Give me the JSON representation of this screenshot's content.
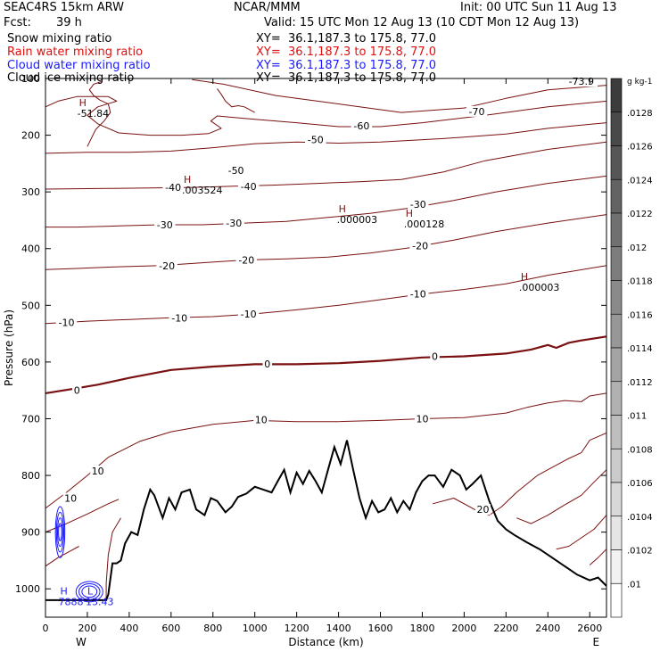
{
  "header": {
    "model": "SEAC4RS 15km ARW",
    "org": "NCAR/MMM",
    "init": "Init: 00 UTC Sun 11 Aug 13",
    "fcst_label": "Fcst:",
    "fcst_value": "39 h",
    "valid": "Valid: 15 UTC Mon 12 Aug 13 (10 CDT Mon 12 Aug 13)",
    "legend": [
      {
        "label": "Snow mixing ratio",
        "xy": "XY=  36.1,187.3 to 175.8, 77.0",
        "color": "#000000"
      },
      {
        "label": "Rain water mixing ratio",
        "xy": "XY=  36.1,187.3 to 175.8, 77.0",
        "color": "#e01010"
      },
      {
        "label": "Cloud water mixing ratio",
        "xy": "XY=  36.1,187.3 to 175.8, 77.0",
        "color": "#1a1aff"
      },
      {
        "label": "Cloud ice mixing ratio",
        "xy": "XY=  36.1,187.3 to 175.8, 77.0",
        "color": "#000000"
      }
    ]
  },
  "chart_data": {
    "type": "contour",
    "xlabel": "Distance (km)",
    "ylabel": "Pressure (hPa)",
    "xlim": [
      0,
      2680
    ],
    "ylim": [
      1050,
      100
    ],
    "x_ticks": [
      0,
      200,
      400,
      600,
      800,
      1000,
      1200,
      1400,
      1600,
      1800,
      2000,
      2200,
      2400,
      2600
    ],
    "y_ticks": [
      100,
      200,
      300,
      400,
      500,
      600,
      700,
      800,
      900,
      1000
    ],
    "end_labels": {
      "left": "W",
      "right": "E"
    },
    "temperature_contours": {
      "color": "#7a1010",
      "interval": 10,
      "zero_line_bold": true,
      "labels": [
        {
          "text": "-70",
          "x": 2060,
          "p": 158
        },
        {
          "text": "-73.9",
          "x": 2560,
          "p": 105
        },
        {
          "text": "-60",
          "x": 1510,
          "p": 183
        },
        {
          "text": "-50",
          "x": 1290,
          "p": 208
        },
        {
          "text": "-50",
          "x": 910,
          "p": 262
        },
        {
          "text": "-40",
          "x": 970,
          "p": 290
        },
        {
          "text": "-40",
          "x": 610,
          "p": 292
        },
        {
          "text": "-30",
          "x": 1780,
          "p": 322
        },
        {
          "text": "-30",
          "x": 900,
          "p": 355
        },
        {
          "text": "-30",
          "x": 570,
          "p": 358
        },
        {
          "text": "-20",
          "x": 1790,
          "p": 395
        },
        {
          "text": "-20",
          "x": 960,
          "p": 420
        },
        {
          "text": "-20",
          "x": 580,
          "p": 430
        },
        {
          "text": "-10",
          "x": 1780,
          "p": 480
        },
        {
          "text": "-10",
          "x": 970,
          "p": 515
        },
        {
          "text": "-10",
          "x": 640,
          "p": 522
        },
        {
          "text": "-10",
          "x": 100,
          "p": 530
        },
        {
          "text": "0",
          "x": 1860,
          "p": 590
        },
        {
          "text": "0",
          "x": 1060,
          "p": 603
        },
        {
          "text": "0",
          "x": 150,
          "p": 650
        },
        {
          "text": "10",
          "x": 1800,
          "p": 700
        },
        {
          "text": "10",
          "x": 1030,
          "p": 702
        },
        {
          "text": "10",
          "x": 250,
          "p": 792
        },
        {
          "text": "10",
          "x": 120,
          "p": 840
        },
        {
          "text": "20",
          "x": 2090,
          "p": 860
        }
      ],
      "extrema": [
        {
          "type": "H",
          "value": "-51.84",
          "x": 220,
          "p": 155
        },
        {
          "type": "H",
          "value": ".003524",
          "x": 720,
          "p": 290
        },
        {
          "type": "H",
          "value": ".000003",
          "x": 1460,
          "p": 342
        },
        {
          "type": "H",
          "value": ".000128",
          "x": 1780,
          "p": 350
        },
        {
          "type": "H",
          "value": ".000003",
          "x": 2330,
          "p": 462
        },
        {
          "type": "H",
          "value": "7888",
          "x": 130,
          "p": 1016
        },
        {
          "type": "L",
          "value": "13.43",
          "x": 260,
          "p": 1016
        }
      ]
    },
    "terrain": {
      "color": "#000000",
      "x": [
        0,
        290,
        300,
        320,
        340,
        360,
        380,
        410,
        440,
        470,
        500,
        520,
        560,
        590,
        620,
        650,
        690,
        720,
        760,
        790,
        820,
        860,
        890,
        920,
        960,
        1000,
        1040,
        1080,
        1110,
        1140,
        1170,
        1200,
        1230,
        1260,
        1290,
        1320,
        1350,
        1380,
        1410,
        1440,
        1470,
        1500,
        1530,
        1560,
        1590,
        1620,
        1650,
        1680,
        1710,
        1740,
        1770,
        1800,
        1830,
        1860,
        1900,
        1940,
        1980,
        2010,
        2040,
        2080,
        2120,
        2160,
        2200,
        2240,
        2300,
        2360,
        2420,
        2480,
        2540,
        2600,
        2640,
        2680
      ],
      "p": [
        1020,
        1020,
        1010,
        955,
        955,
        950,
        920,
        900,
        905,
        860,
        825,
        835,
        875,
        840,
        860,
        830,
        825,
        860,
        870,
        840,
        845,
        865,
        855,
        838,
        832,
        820,
        825,
        830,
        810,
        790,
        830,
        795,
        815,
        792,
        810,
        830,
        790,
        750,
        780,
        738,
        790,
        840,
        875,
        845,
        865,
        860,
        840,
        865,
        845,
        860,
        830,
        810,
        800,
        800,
        820,
        790,
        800,
        825,
        815,
        800,
        845,
        880,
        895,
        905,
        918,
        930,
        945,
        960,
        975,
        985,
        980,
        995
      ]
    },
    "shading": {
      "label": "g kg-1",
      "ticks": [
        ".0128",
        ".0126",
        ".0124",
        ".0122",
        ".012",
        ".0118",
        ".0116",
        ".0114",
        ".0112",
        ".011",
        ".0108",
        ".0106",
        ".0104",
        ".0102",
        ".01"
      ]
    }
  }
}
